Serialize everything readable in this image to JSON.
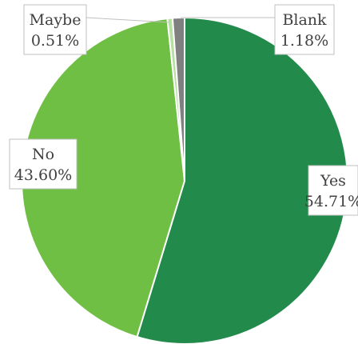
{
  "chart_data": {
    "type": "pie",
    "title": "",
    "slices": [
      {
        "label": "Yes",
        "value": 54.71,
        "percent_label": "54.71%",
        "color": "#228b4c"
      },
      {
        "label": "No",
        "value": 43.6,
        "percent_label": "43.60%",
        "color": "#6fbf44"
      },
      {
        "label": "Maybe",
        "value": 0.51,
        "percent_label": "0.51%",
        "color": "#b7dfa1"
      },
      {
        "label": "Blank",
        "value": 1.18,
        "percent_label": "1.18%",
        "color": "#808080"
      }
    ],
    "start_angle_deg": 0,
    "direction": "clockwise",
    "slice_border_color": "#ffffff",
    "legend": "none",
    "data_labels": "callouts"
  }
}
